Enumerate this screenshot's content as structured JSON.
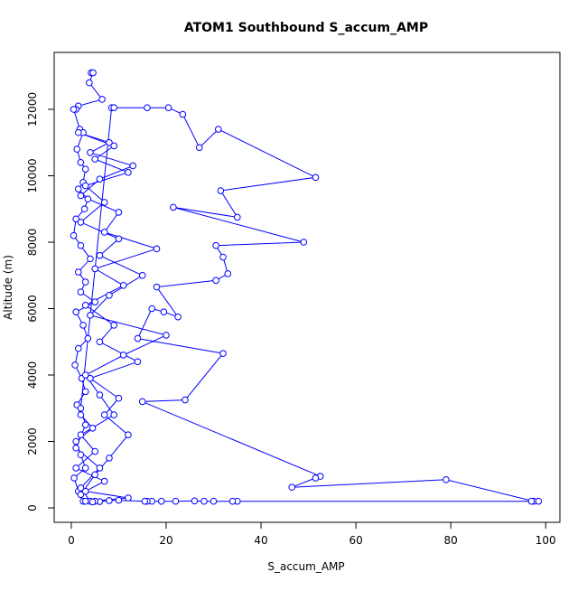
{
  "chart_data": {
    "type": "line",
    "title": "ATOM1 Southbound S_accum_AMP",
    "x_label": "S_accum_AMP",
    "y_label": "Altitude (m)",
    "color": "#0000ff",
    "x": [
      4.2,
      4.6,
      3.8,
      6.5,
      1.5,
      1,
      0.5,
      1.8,
      2.5,
      1.2,
      2,
      3,
      2.5,
      1.5,
      3.5,
      2.8,
      1,
      0.5,
      2,
      4,
      1.5,
      3,
      2,
      5,
      1,
      2.5,
      3.5,
      1.5,
      0.8,
      2.2,
      3,
      1.2,
      2,
      4.5,
      1,
      2,
      3,
      0.6,
      1.5,
      2.5,
      2,
      5,
      8,
      12,
      7,
      10,
      4,
      14,
      6,
      9,
      3,
      11,
      5,
      18,
      7,
      10,
      2,
      6,
      13,
      4,
      8,
      1.5,
      9,
      5,
      12,
      3,
      7,
      2,
      10,
      6,
      15,
      8,
      4,
      20,
      11,
      3,
      6,
      9,
      2,
      5,
      1,
      7,
      3,
      12,
      4,
      2,
      6,
      1,
      3,
      2,
      8.5,
      9,
      16,
      20.5,
      23.5,
      27,
      31,
      51.5,
      31.5,
      35,
      21.5,
      49,
      30.5,
      32,
      33,
      30.5,
      18,
      22.5,
      19.5,
      17,
      14,
      32,
      24,
      15,
      52.5,
      51.5,
      46.5,
      79,
      97.5,
      98.5,
      97,
      35,
      34,
      30,
      28,
      26,
      22,
      19,
      17,
      16,
      15.5,
      10,
      8,
      6,
      5,
      4.5,
      3
    ],
    "values": [
      13100,
      13100,
      12800,
      12300,
      12100,
      12000,
      12000,
      11400,
      11300,
      10800,
      10400,
      10200,
      9800,
      9600,
      9300,
      9000,
      8700,
      8200,
      7900,
      7500,
      7100,
      6800,
      6500,
      6200,
      5900,
      5500,
      5100,
      4800,
      4300,
      3900,
      3500,
      3100,
      2800,
      2400,
      2000,
      1600,
      1200,
      900,
      500,
      200,
      400,
      1000,
      1500,
      2200,
      2800,
      3300,
      3900,
      4400,
      5000,
      5500,
      6100,
      6700,
      7200,
      7800,
      8300,
      8900,
      9400,
      9900,
      10300,
      10700,
      11000,
      11300,
      10900,
      10500,
      10100,
      9700,
      9200,
      8600,
      8100,
      7600,
      7000,
      6400,
      5800,
      5200,
      4600,
      4000,
      3400,
      2800,
      2200,
      1700,
      1200,
      800,
      500,
      300,
      200,
      600,
      1200,
      1800,
      2500,
      3000,
      12050,
      12050,
      12050,
      12050,
      11850,
      10850,
      11400,
      9950,
      9550,
      8750,
      9050,
      8000,
      7900,
      7550,
      7050,
      6850,
      6650,
      5750,
      5900,
      6000,
      5100,
      4650,
      3250,
      3200,
      950,
      900,
      620,
      850,
      200,
      200,
      200,
      200,
      200,
      200,
      200,
      210,
      200,
      200,
      200,
      200,
      200,
      230,
      220,
      190,
      200,
      180,
      200
    ],
    "xlim": [
      -3.6,
      103
    ],
    "ylim": [
      -435,
      13714
    ],
    "xticks": [
      0,
      20,
      40,
      60,
      80,
      100
    ],
    "yticks": [
      0,
      2000,
      4000,
      6000,
      8000,
      10000,
      12000
    ]
  }
}
